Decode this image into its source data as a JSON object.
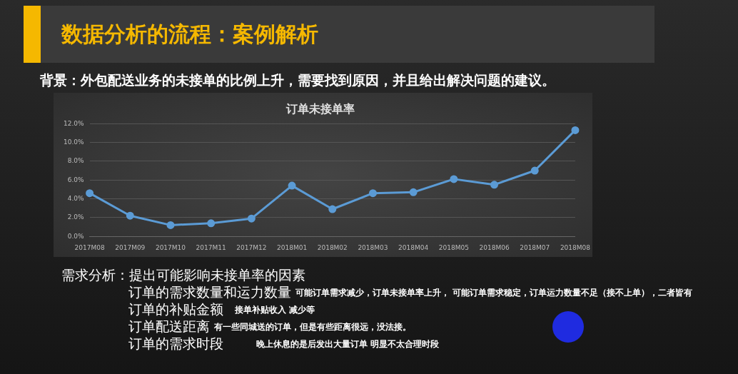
{
  "chart_data": {
    "type": "line",
    "title": "订单未接单率",
    "categories": [
      "2017M08",
      "2017M09",
      "2017M10",
      "2017M11",
      "2017M12",
      "2018M01",
      "2018M02",
      "2018M03",
      "2018M04",
      "2018M05",
      "2018M06",
      "2018M07",
      "2018M08"
    ],
    "series": [
      {
        "color": "#5b9bd5",
        "values": [
          4.6,
          2.2,
          1.2,
          1.4,
          1.9,
          5.4,
          2.9,
          4.6,
          4.7,
          6.1,
          5.5,
          7.0,
          11.3
        ]
      }
    ],
    "ylim": [
      0,
      12
    ],
    "yticks": [
      {
        "value": 0,
        "label": "0.0%"
      },
      {
        "value": 2,
        "label": "2.0%"
      },
      {
        "value": 4,
        "label": "4.0%"
      },
      {
        "value": 6,
        "label": "6.0%"
      },
      {
        "value": 8,
        "label": "8.0%"
      },
      {
        "value": 10,
        "label": "10.0%"
      },
      {
        "value": 12,
        "label": "12.0%"
      }
    ],
    "grid": "y",
    "legend": false,
    "marker": "circle",
    "line_style": "solid",
    "annotations": [
      "数据分析的流程：案例解析",
      "背景：外包配送业务的未接单的比例上升，需要找到原因，并且给出解决问题的建议。",
      "需求分析：提出可能影响未接单率的因素",
      "订单的需求数量和运力数量",
      "可能订单需求减少，订单未接单率上升， 可能订单需求稳定，订单运力数量不足（接不上单），二者皆有",
      "订单的补贴金额",
      "接单补贴收入 减少等",
      "订单配送距离",
      "有一些同城送的订单，但是有些距离很远，没法接。",
      "订单的需求时段",
      "晚上休息的是后发出大量订单 明显不太合理时段"
    ]
  }
}
